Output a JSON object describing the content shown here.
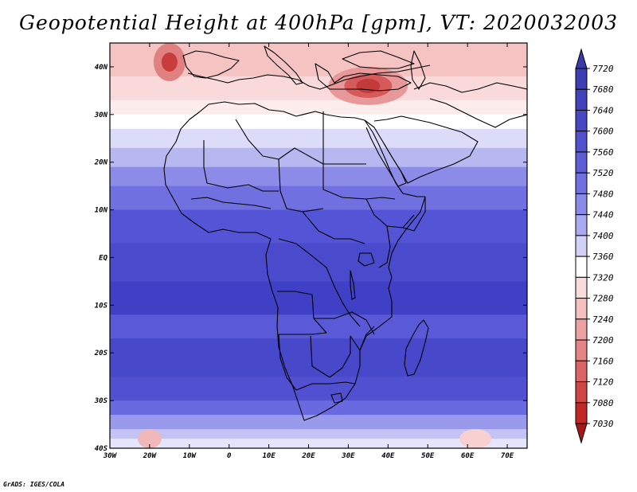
{
  "title": "Geopotential Height at 400hPa [gpm], VT: 2020032003",
  "footer": "GrADS: IGES/COLA",
  "map": {
    "lon_range": [
      -30,
      75
    ],
    "lat_range": [
      -40,
      45
    ],
    "lat_ticks": [
      {
        "value": 40,
        "label": "40N"
      },
      {
        "value": 30,
        "label": "30N"
      },
      {
        "value": 20,
        "label": "20N"
      },
      {
        "value": 10,
        "label": "10N"
      },
      {
        "value": 0,
        "label": "EQ"
      },
      {
        "value": -10,
        "label": "10S"
      },
      {
        "value": -20,
        "label": "20S"
      },
      {
        "value": -30,
        "label": "30S"
      },
      {
        "value": -40,
        "label": "40S"
      }
    ],
    "lon_ticks": [
      {
        "value": -30,
        "label": "30W"
      },
      {
        "value": -20,
        "label": "20W"
      },
      {
        "value": -10,
        "label": "10W"
      },
      {
        "value": 0,
        "label": "0"
      },
      {
        "value": 10,
        "label": "10E"
      },
      {
        "value": 20,
        "label": "20E"
      },
      {
        "value": 30,
        "label": "30E"
      },
      {
        "value": 40,
        "label": "40E"
      },
      {
        "value": 50,
        "label": "50E"
      },
      {
        "value": 60,
        "label": "60E"
      },
      {
        "value": 70,
        "label": "70E"
      }
    ],
    "field_bands": [
      {
        "lat": 45,
        "color": "#f6c3c3"
      },
      {
        "lat": 38,
        "color": "#f9d9d9"
      },
      {
        "lat": 33,
        "color": "#fcecec"
      },
      {
        "lat": 30,
        "color": "#ffffff"
      },
      {
        "lat": 27,
        "color": "#dcdcf8"
      },
      {
        "lat": 23,
        "color": "#b8b8f0"
      },
      {
        "lat": 19,
        "color": "#8c8ce8"
      },
      {
        "lat": 15,
        "color": "#7070e0"
      },
      {
        "lat": 10,
        "color": "#5454d6"
      },
      {
        "lat": 3,
        "color": "#4a4acc"
      },
      {
        "lat": -5,
        "color": "#4040c6"
      },
      {
        "lat": -12,
        "color": "#5a5ad8"
      },
      {
        "lat": -17,
        "color": "#4848ca"
      },
      {
        "lat": -25,
        "color": "#5050d0"
      },
      {
        "lat": -30,
        "color": "#6a6ae0"
      },
      {
        "lat": -33,
        "color": "#9a9aec"
      },
      {
        "lat": -36,
        "color": "#c4c4f4"
      },
      {
        "lat": -38,
        "color": "#e4e4fa"
      },
      {
        "lat": -40,
        "color": "#ffffff"
      }
    ],
    "lows": [
      {
        "lon": 35,
        "lat": 36,
        "rx": 10,
        "ry": 4,
        "color": "#e89898"
      },
      {
        "lon": 35,
        "lat": 36,
        "rx": 6,
        "ry": 2.5,
        "color": "#d65a5a"
      },
      {
        "lon": 35,
        "lat": 36,
        "rx": 3,
        "ry": 1.5,
        "color": "#c23a3a"
      },
      {
        "lon": -15,
        "lat": 41,
        "rx": 4,
        "ry": 4,
        "color": "#e08080"
      },
      {
        "lon": -15,
        "lat": 41,
        "rx": 2,
        "ry": 2,
        "color": "#c83c3c"
      },
      {
        "lon": -20,
        "lat": -38,
        "rx": 3,
        "ry": 2,
        "color": "#f0b8b8"
      },
      {
        "lon": 62,
        "lat": -38,
        "rx": 4,
        "ry": 2,
        "color": "#f8d0d0"
      }
    ]
  },
  "colorbar": {
    "levels": [
      "7720",
      "7680",
      "7640",
      "7600",
      "7560",
      "7520",
      "7480",
      "7440",
      "7400",
      "7360",
      "7320",
      "7280",
      "7240",
      "7200",
      "7160",
      "7120",
      "7080",
      "7030"
    ],
    "colors": [
      "#3a3aaa",
      "#3d3db4",
      "#4242bc",
      "#4848c4",
      "#5252cc",
      "#5e5ed6",
      "#7070e0",
      "#8a8ae8",
      "#aaaaf0",
      "#d2d2f8",
      "#ffffff",
      "#fadcdc",
      "#f4c0c0",
      "#eca2a2",
      "#e48484",
      "#dc6464",
      "#d04646",
      "#c22828",
      "#a81818"
    ]
  }
}
